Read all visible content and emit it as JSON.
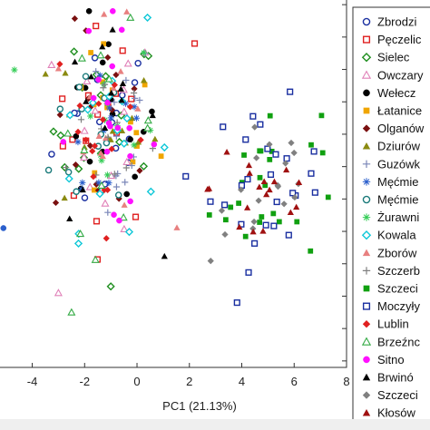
{
  "chart_data": {
    "type": "scatter",
    "xlabel": "PC1 (21.13%)",
    "ylabel": "",
    "xlim": [
      -5.3,
      8
    ],
    "ylim": [
      -6.2,
      5.2
    ],
    "x_ticks": [
      -4,
      -2,
      0,
      2,
      4,
      6,
      8
    ],
    "grid": false,
    "legend_position": "right",
    "colors": {
      "navy": "#1a2fa0",
      "red": "#e02020",
      "green": "#1f8f1f",
      "pink": "#e080b8",
      "black": "#000000",
      "orange": "#f0a500",
      "maroon": "#7a1010",
      "olive": "#8a8a10",
      "slate": "#7a86b8",
      "blue": "#2b5fcc",
      "teal": "#1a7a7a",
      "ltgreen": "#33cc55",
      "cyan": "#10c8d8",
      "salmon": "#e88080",
      "gray": "#808080",
      "magenta": "#ff10ff",
      "dkred": "#a01010",
      "brightgreen": "#10a010"
    },
    "series": [
      {
        "name": "Zbrodzi",
        "marker": "circle-open",
        "color": "#1a2fa0",
        "cluster": "left",
        "n": 16
      },
      {
        "name": "Pęczelic",
        "marker": "square-open",
        "color": "#e02020",
        "cluster": "left",
        "n": 16
      },
      {
        "name": "Sielec",
        "marker": "diamond-open",
        "color": "#1f8f1f",
        "cluster": "left",
        "n": 16
      },
      {
        "name": "Owczary",
        "marker": "triangle-open",
        "color": "#e080b8",
        "cluster": "left",
        "n": 14
      },
      {
        "name": "Wełecz",
        "marker": "circle",
        "color": "#000000",
        "cluster": "left",
        "n": 16
      },
      {
        "name": "Łatanice",
        "marker": "square",
        "color": "#f0a500",
        "cluster": "left",
        "n": 16
      },
      {
        "name": "Olganów",
        "marker": "diamond",
        "color": "#7a1010",
        "cluster": "left",
        "n": 16
      },
      {
        "name": "Dziurów",
        "marker": "triangle",
        "color": "#8a8a10",
        "cluster": "left",
        "n": 14
      },
      {
        "name": "Guzówk",
        "marker": "plus",
        "color": "#7a86b8",
        "cluster": "left",
        "n": 14
      },
      {
        "name": "Męćmie",
        "marker": "asterisk",
        "color": "#2b5fcc",
        "cluster": "left",
        "n": 12
      },
      {
        "name": "Męćmie",
        "marker": "circle-open",
        "color": "#1a7a7a",
        "cluster": "left",
        "n": 14
      },
      {
        "name": "Żurawni",
        "marker": "asterisk",
        "color": "#33cc55",
        "cluster": "left",
        "n": 12
      },
      {
        "name": "Kowala",
        "marker": "diamond-open",
        "color": "#10c8d8",
        "cluster": "left",
        "n": 16
      },
      {
        "name": "Zborów",
        "marker": "triangle",
        "color": "#e88080",
        "cluster": "left",
        "n": 14
      },
      {
        "name": "Szczerb",
        "marker": "plus",
        "color": "#808080",
        "cluster": "left",
        "n": 12
      },
      {
        "name": "Szczeci",
        "marker": "square",
        "color": "#10a010",
        "cluster": "right",
        "n": 24
      },
      {
        "name": "Moczyły",
        "marker": "square-open",
        "color": "#1a2fa0",
        "cluster": "right",
        "n": 26
      },
      {
        "name": "Lublin",
        "marker": "diamond",
        "color": "#e02020",
        "cluster": "left",
        "n": 16
      },
      {
        "name": "Brzeźnc",
        "marker": "triangle-open",
        "color": "#33aa44",
        "cluster": "left",
        "n": 12
      },
      {
        "name": "Sitno",
        "marker": "circle",
        "color": "#ff10ff",
        "cluster": "left",
        "n": 18
      },
      {
        "name": "Brwinó",
        "marker": "triangle",
        "color": "#000000",
        "cluster": "left",
        "n": 14
      },
      {
        "name": "Szczeci",
        "marker": "diamond",
        "color": "#808080",
        "cluster": "right",
        "n": 18
      },
      {
        "name": "Kłosów",
        "marker": "triangle",
        "color": "#a01010",
        "cluster": "right",
        "n": 18
      }
    ]
  }
}
